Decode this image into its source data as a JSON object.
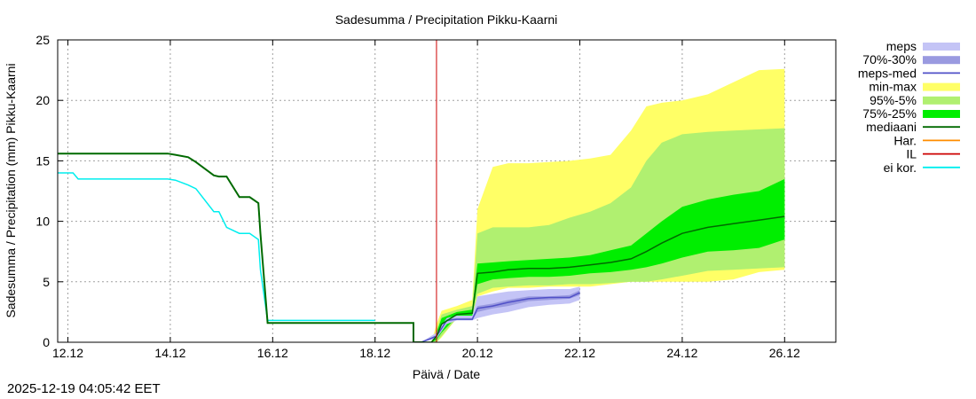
{
  "chart_data": {
    "type": "area",
    "title": "Sadesumma / Precipitation  Pikku-Kaarni",
    "xlabel": "Päivä / Date",
    "ylabel": "Sadesumma / Precipitation (mm)  Pikku-Kaarni",
    "xlim": [
      10.8,
      26.0
    ],
    "ylim": [
      0,
      25
    ],
    "x_ticks": [
      {
        "v": 11.0,
        "label": "12.12"
      },
      {
        "v": 13.0,
        "label": "14.12"
      },
      {
        "v": 15.0,
        "label": "16.12"
      },
      {
        "v": 17.0,
        "label": "18.12"
      },
      {
        "v": 19.0,
        "label": "20.12"
      },
      {
        "v": 21.0,
        "label": "22.12"
      },
      {
        "v": 23.0,
        "label": "24.12"
      },
      {
        "v": 25.0,
        "label": "26.12"
      }
    ],
    "y_ticks": [
      0,
      5,
      10,
      15,
      20,
      25
    ],
    "vline_x": 18.2,
    "colors": {
      "meps": "#c4c4f6",
      "meps_70_30": "#9a9ae0",
      "meps_med": "#5050c8",
      "minmax": "#ffff66",
      "p95_5": "#b0f070",
      "p75_25": "#00ee00",
      "mediaani": "#006a00",
      "har": "#ff8c00",
      "il": "#cc0000",
      "eikor": "#00eeee"
    },
    "series": {
      "observed": {
        "name": "mediaani",
        "x": [
          10.8,
          12.95,
          13.1,
          13.35,
          13.5,
          13.85,
          13.95,
          14.1,
          14.35,
          14.55,
          14.72,
          14.76,
          14.9,
          15.35,
          17.75,
          17.75,
          17.95
        ],
        "y": [
          15.6,
          15.6,
          15.5,
          15.3,
          14.9,
          13.8,
          13.7,
          13.7,
          12.0,
          12.0,
          11.5,
          9.0,
          1.6,
          1.6,
          1.6,
          0.0,
          0.0
        ]
      },
      "eikor": {
        "name": "ei kor.",
        "x": [
          10.8,
          11.1,
          11.2,
          12.6,
          12.95,
          13.1,
          13.35,
          13.5,
          13.85,
          13.95,
          14.1,
          14.35,
          14.55,
          14.72,
          14.76,
          14.9,
          17.0
        ],
        "y": [
          14.0,
          14.0,
          13.5,
          13.5,
          13.5,
          13.4,
          13.0,
          12.7,
          10.8,
          10.8,
          9.5,
          9.0,
          9.0,
          8.5,
          6.0,
          1.8,
          1.8
        ]
      },
      "forecast": {
        "x": [
          17.9,
          18.0,
          18.1,
          18.2,
          18.3,
          18.6,
          18.9,
          19.0,
          19.3,
          19.6,
          20.0,
          20.4,
          20.8,
          21.2,
          21.6,
          22.0,
          22.3,
          22.6,
          23.0,
          23.5,
          24.0,
          24.5,
          25.0
        ],
        "min": [
          0.0,
          0.0,
          0.0,
          0.0,
          0.4,
          2.0,
          2.0,
          3.8,
          4.2,
          4.5,
          4.5,
          4.6,
          4.6,
          4.6,
          4.8,
          5.0,
          5.0,
          5.0,
          5.0,
          5.0,
          5.2,
          5.8,
          6.0
        ],
        "p5": [
          0.0,
          0.0,
          0.0,
          0.0,
          0.5,
          2.0,
          2.1,
          4.0,
          4.5,
          4.6,
          4.7,
          4.7,
          4.8,
          4.8,
          4.9,
          5.0,
          5.0,
          5.2,
          5.5,
          5.9,
          6.0,
          6.1,
          6.2
        ],
        "p25": [
          0.0,
          0.0,
          0.0,
          0.2,
          0.8,
          2.1,
          2.2,
          4.8,
          5.2,
          5.3,
          5.4,
          5.4,
          5.5,
          5.7,
          5.8,
          6.0,
          6.2,
          6.5,
          7.0,
          7.5,
          7.6,
          7.8,
          8.5
        ],
        "med": [
          0.0,
          0.0,
          0.0,
          0.5,
          1.5,
          2.3,
          2.4,
          5.7,
          5.8,
          6.0,
          6.1,
          6.1,
          6.2,
          6.4,
          6.6,
          6.9,
          7.5,
          8.2,
          9.0,
          9.5,
          9.8,
          10.1,
          10.4
        ],
        "p75": [
          0.0,
          0.0,
          0.0,
          0.8,
          2.0,
          2.5,
          2.7,
          6.5,
          6.6,
          6.7,
          6.8,
          6.9,
          7.0,
          7.2,
          7.6,
          8.0,
          9.0,
          10.0,
          11.2,
          11.8,
          12.2,
          12.5,
          13.5
        ],
        "p95": [
          0.0,
          0.0,
          0.0,
          1.0,
          2.3,
          2.7,
          3.0,
          9.0,
          9.5,
          9.5,
          9.5,
          9.7,
          10.3,
          10.8,
          11.5,
          12.8,
          15.0,
          16.5,
          17.2,
          17.4,
          17.5,
          17.6,
          17.7
        ],
        "max": [
          0.0,
          0.0,
          0.0,
          1.5,
          2.6,
          3.0,
          3.5,
          11.0,
          14.5,
          14.8,
          14.8,
          14.9,
          15.0,
          15.2,
          15.5,
          17.5,
          19.5,
          19.8,
          20.0,
          20.5,
          21.5,
          22.5,
          22.6
        ]
      },
      "meps": {
        "x": [
          17.9,
          18.2,
          18.4,
          18.6,
          18.9,
          19.0,
          19.3,
          19.6,
          20.0,
          20.4,
          20.8,
          21.0
        ],
        "min": [
          0.0,
          0.3,
          1.5,
          1.8,
          1.8,
          2.0,
          2.3,
          2.5,
          2.9,
          3.1,
          3.2,
          3.5
        ],
        "p30": [
          0.0,
          0.4,
          1.7,
          1.9,
          1.9,
          2.5,
          2.8,
          3.0,
          3.4,
          3.5,
          3.6,
          3.9
        ],
        "med": [
          0.0,
          0.5,
          1.8,
          1.9,
          1.9,
          2.8,
          3.0,
          3.3,
          3.6,
          3.7,
          3.7,
          4.1
        ],
        "p70": [
          0.0,
          0.6,
          1.9,
          2.0,
          2.0,
          3.0,
          3.2,
          3.5,
          3.8,
          3.8,
          3.9,
          4.3
        ],
        "max": [
          0.0,
          0.8,
          2.0,
          2.2,
          2.2,
          3.8,
          4.0,
          4.2,
          4.3,
          4.4,
          4.4,
          4.6
        ]
      }
    },
    "legend": [
      {
        "key": "meps",
        "label": "meps",
        "style": "band"
      },
      {
        "key": "meps_70_30",
        "label": "70%-30%",
        "style": "band"
      },
      {
        "key": "meps_med",
        "label": "meps-med",
        "style": "line"
      },
      {
        "key": "minmax",
        "label": "min-max",
        "style": "band"
      },
      {
        "key": "p95_5",
        "label": "95%-5%",
        "style": "band"
      },
      {
        "key": "p75_25",
        "label": "75%-25%",
        "style": "band"
      },
      {
        "key": "mediaani",
        "label": "mediaani",
        "style": "line"
      },
      {
        "key": "har",
        "label": "Har.",
        "style": "line"
      },
      {
        "key": "il",
        "label": "IL",
        "style": "line"
      },
      {
        "key": "eikor",
        "label": "ei kor.",
        "style": "line"
      }
    ]
  },
  "timestamp": "2025-12-19 04:05:42 EET"
}
